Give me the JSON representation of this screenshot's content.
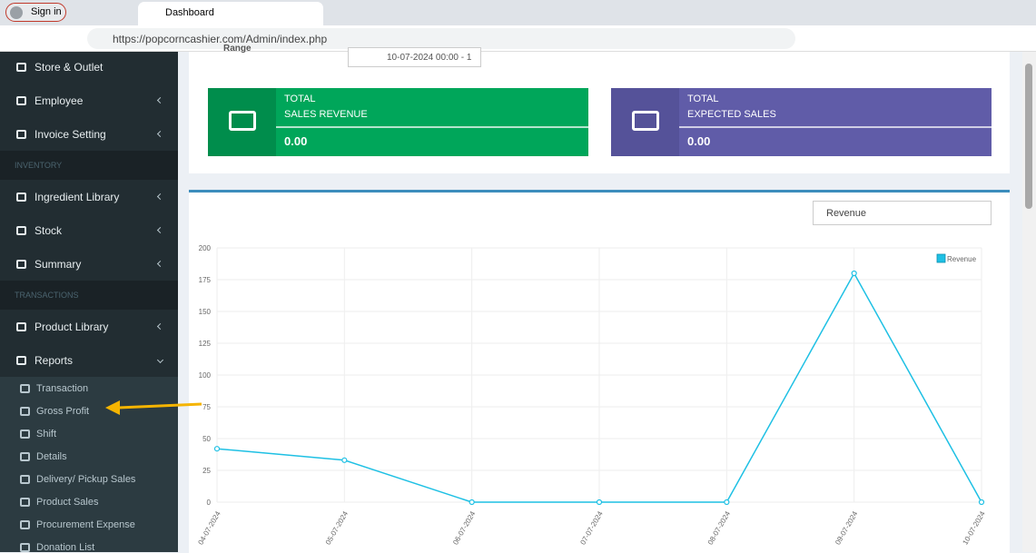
{
  "browser": {
    "sign_in": "Sign in",
    "tab_title": "Dashboard",
    "url": "https://popcorncashier.com/Admin/index.php"
  },
  "sidebar": [
    {
      "label": "Store & Outlet",
      "kind": "item"
    },
    {
      "label": "Employee",
      "kind": "item",
      "caret": "left"
    },
    {
      "label": "Invoice Setting",
      "kind": "item",
      "caret": "left"
    },
    {
      "label": "INVENTORY",
      "kind": "header"
    },
    {
      "label": "Ingredient Library",
      "kind": "item",
      "caret": "left"
    },
    {
      "label": "Stock",
      "kind": "item",
      "caret": "left"
    },
    {
      "label": "Summary",
      "kind": "item",
      "caret": "left"
    },
    {
      "label": "TRANSACTIONS",
      "kind": "header"
    },
    {
      "label": "Product Library",
      "kind": "item",
      "caret": "left"
    },
    {
      "label": "Reports",
      "kind": "item",
      "caret": "down"
    },
    {
      "label": "Transaction",
      "kind": "subitem"
    },
    {
      "label": "Gross Profit",
      "kind": "subitem"
    },
    {
      "label": "Shift",
      "kind": "subitem"
    },
    {
      "label": "Details",
      "kind": "subitem"
    },
    {
      "label": "Delivery/ Pickup Sales",
      "kind": "subitem"
    },
    {
      "label": "Product Sales",
      "kind": "subitem"
    },
    {
      "label": "Procurement Expense",
      "kind": "subitem"
    },
    {
      "label": "Donation List",
      "kind": "subitem"
    }
  ],
  "filter": {
    "range_label": "Range",
    "date_range": "10-07-2024 00:00 - 1"
  },
  "cards": [
    {
      "line1": "TOTAL",
      "line2": "SALES REVENUE",
      "value": "0.00",
      "color": "#00a65a",
      "icon_color": "#008d4c"
    },
    {
      "line1": "TOTAL",
      "line2": "EXPECTED SALES",
      "value": "0.00",
      "color": "#605ca8",
      "icon_color": "#555299"
    }
  ],
  "chart_select": "Revenue",
  "chart_data": {
    "type": "line",
    "categories": [
      "04-07-2024",
      "05-07-2024",
      "06-07-2024",
      "07-07-2024",
      "08-07-2024",
      "09-07-2024",
      "10-07-2024"
    ],
    "series": [
      {
        "name": "Revenue",
        "color": "#1ec0e4",
        "values": [
          42,
          33,
          0,
          0,
          0,
          180,
          0
        ]
      }
    ],
    "ylim": [
      0,
      200
    ],
    "yticks": [
      0,
      25,
      50,
      75,
      100,
      125,
      150,
      175,
      200
    ],
    "grid": true,
    "legend": "top-right"
  }
}
